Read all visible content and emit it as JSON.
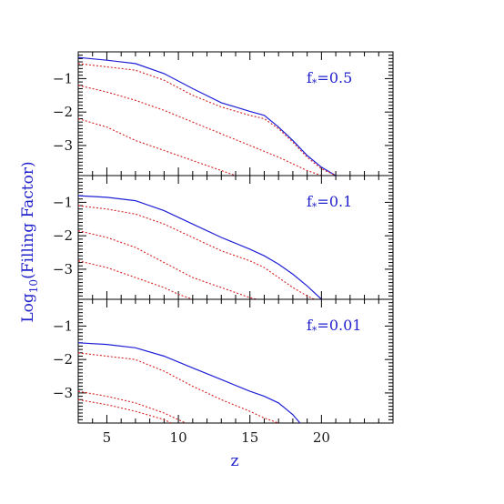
{
  "chart_data": {
    "type": "line",
    "ylabel_main": "Log",
    "ylabel_sub": "10",
    "ylabel_rest": "(Filling Factor)",
    "xlabel": "z",
    "xlim": [
      3,
      25
    ],
    "ylim": [
      -3.9,
      -0.2
    ],
    "x_ticks": [
      5,
      10,
      15,
      20
    ],
    "y_ticks": [
      -1,
      -2,
      -3
    ],
    "panels": [
      {
        "label": "f",
        "label_sub": "*",
        "label_value": "=0.5",
        "series": [
          {
            "style": "solid",
            "points": [
              [
                3,
                -0.37
              ],
              [
                5,
                -0.45
              ],
              [
                7,
                -0.55
              ],
              [
                9,
                -0.85
              ],
              [
                11,
                -1.3
              ],
              [
                13,
                -1.72
              ],
              [
                15,
                -1.98
              ],
              [
                16,
                -2.1
              ],
              [
                17,
                -2.45
              ],
              [
                18,
                -2.85
              ],
              [
                19,
                -3.3
              ],
              [
                20,
                -3.65
              ],
              [
                21,
                -3.9
              ]
            ]
          },
          {
            "style": "dotted",
            "points": [
              [
                3,
                -0.55
              ],
              [
                5,
                -0.65
              ],
              [
                7,
                -0.75
              ],
              [
                9,
                -1.05
              ],
              [
                11,
                -1.5
              ],
              [
                13,
                -1.85
              ],
              [
                15,
                -2.1
              ],
              [
                16,
                -2.2
              ],
              [
                17,
                -2.5
              ],
              [
                18,
                -2.9
              ],
              [
                19,
                -3.35
              ],
              [
                20,
                -3.7
              ],
              [
                21,
                -3.9
              ]
            ]
          },
          {
            "style": "dotted",
            "points": [
              [
                3,
                -1.2
              ],
              [
                5,
                -1.4
              ],
              [
                7,
                -1.65
              ],
              [
                9,
                -1.95
              ],
              [
                11,
                -2.3
              ],
              [
                13,
                -2.65
              ],
              [
                15,
                -3.0
              ],
              [
                17,
                -3.35
              ],
              [
                18,
                -3.55
              ],
              [
                19,
                -3.75
              ],
              [
                20,
                -3.9
              ]
            ]
          },
          {
            "style": "dotted",
            "points": [
              [
                3,
                -2.2
              ],
              [
                5,
                -2.45
              ],
              [
                7,
                -2.85
              ],
              [
                9,
                -3.15
              ],
              [
                11,
                -3.45
              ],
              [
                13,
                -3.75
              ],
              [
                14,
                -3.9
              ]
            ]
          }
        ]
      },
      {
        "label": "f",
        "label_sub": "*",
        "label_value": "=0.1",
        "series": [
          {
            "style": "solid",
            "points": [
              [
                3,
                -0.8
              ],
              [
                5,
                -0.85
              ],
              [
                7,
                -0.95
              ],
              [
                9,
                -1.25
              ],
              [
                11,
                -1.65
              ],
              [
                13,
                -2.05
              ],
              [
                15,
                -2.4
              ],
              [
                16,
                -2.6
              ],
              [
                17,
                -2.85
              ],
              [
                18,
                -3.15
              ],
              [
                19,
                -3.5
              ],
              [
                20,
                -3.9
              ]
            ]
          },
          {
            "style": "dotted",
            "points": [
              [
                3,
                -1.1
              ],
              [
                5,
                -1.2
              ],
              [
                7,
                -1.35
              ],
              [
                9,
                -1.65
              ],
              [
                11,
                -2.05
              ],
              [
                13,
                -2.45
              ],
              [
                15,
                -2.75
              ],
              [
                16,
                -2.95
              ],
              [
                17,
                -3.25
              ],
              [
                18,
                -3.55
              ],
              [
                19,
                -3.8
              ],
              [
                19.5,
                -3.9
              ]
            ]
          },
          {
            "style": "dotted",
            "points": [
              [
                3,
                -1.85
              ],
              [
                5,
                -2.05
              ],
              [
                7,
                -2.35
              ],
              [
                9,
                -2.8
              ],
              [
                11,
                -3.25
              ],
              [
                13,
                -3.55
              ],
              [
                15,
                -3.85
              ],
              [
                15.5,
                -3.9
              ]
            ]
          },
          {
            "style": "dotted",
            "points": [
              [
                3,
                -2.75
              ],
              [
                5,
                -2.95
              ],
              [
                7,
                -3.25
              ],
              [
                9,
                -3.55
              ],
              [
                10,
                -3.75
              ],
              [
                11,
                -3.9
              ]
            ]
          }
        ]
      },
      {
        "label": "f",
        "label_sub": "*",
        "label_value": "=0.01",
        "series": [
          {
            "style": "solid",
            "points": [
              [
                3,
                -1.5
              ],
              [
                5,
                -1.55
              ],
              [
                7,
                -1.65
              ],
              [
                9,
                -1.9
              ],
              [
                11,
                -2.25
              ],
              [
                13,
                -2.6
              ],
              [
                15,
                -2.95
              ],
              [
                16,
                -3.1
              ],
              [
                17,
                -3.3
              ],
              [
                18,
                -3.65
              ],
              [
                18.5,
                -3.9
              ]
            ]
          },
          {
            "style": "dotted",
            "points": [
              [
                3,
                -1.8
              ],
              [
                5,
                -1.9
              ],
              [
                7,
                -2.0
              ],
              [
                9,
                -2.35
              ],
              [
                11,
                -2.8
              ],
              [
                13,
                -3.2
              ],
              [
                15,
                -3.55
              ],
              [
                16,
                -3.75
              ],
              [
                17,
                -3.9
              ]
            ]
          },
          {
            "style": "dotted",
            "points": [
              [
                3,
                -2.95
              ],
              [
                5,
                -3.1
              ],
              [
                7,
                -3.3
              ],
              [
                9,
                -3.6
              ],
              [
                10.5,
                -3.9
              ]
            ]
          },
          {
            "style": "dotted",
            "points": [
              [
                3,
                -3.2
              ],
              [
                5,
                -3.35
              ],
              [
                7,
                -3.55
              ],
              [
                9,
                -3.8
              ],
              [
                9.5,
                -3.9
              ]
            ]
          }
        ]
      }
    ]
  }
}
